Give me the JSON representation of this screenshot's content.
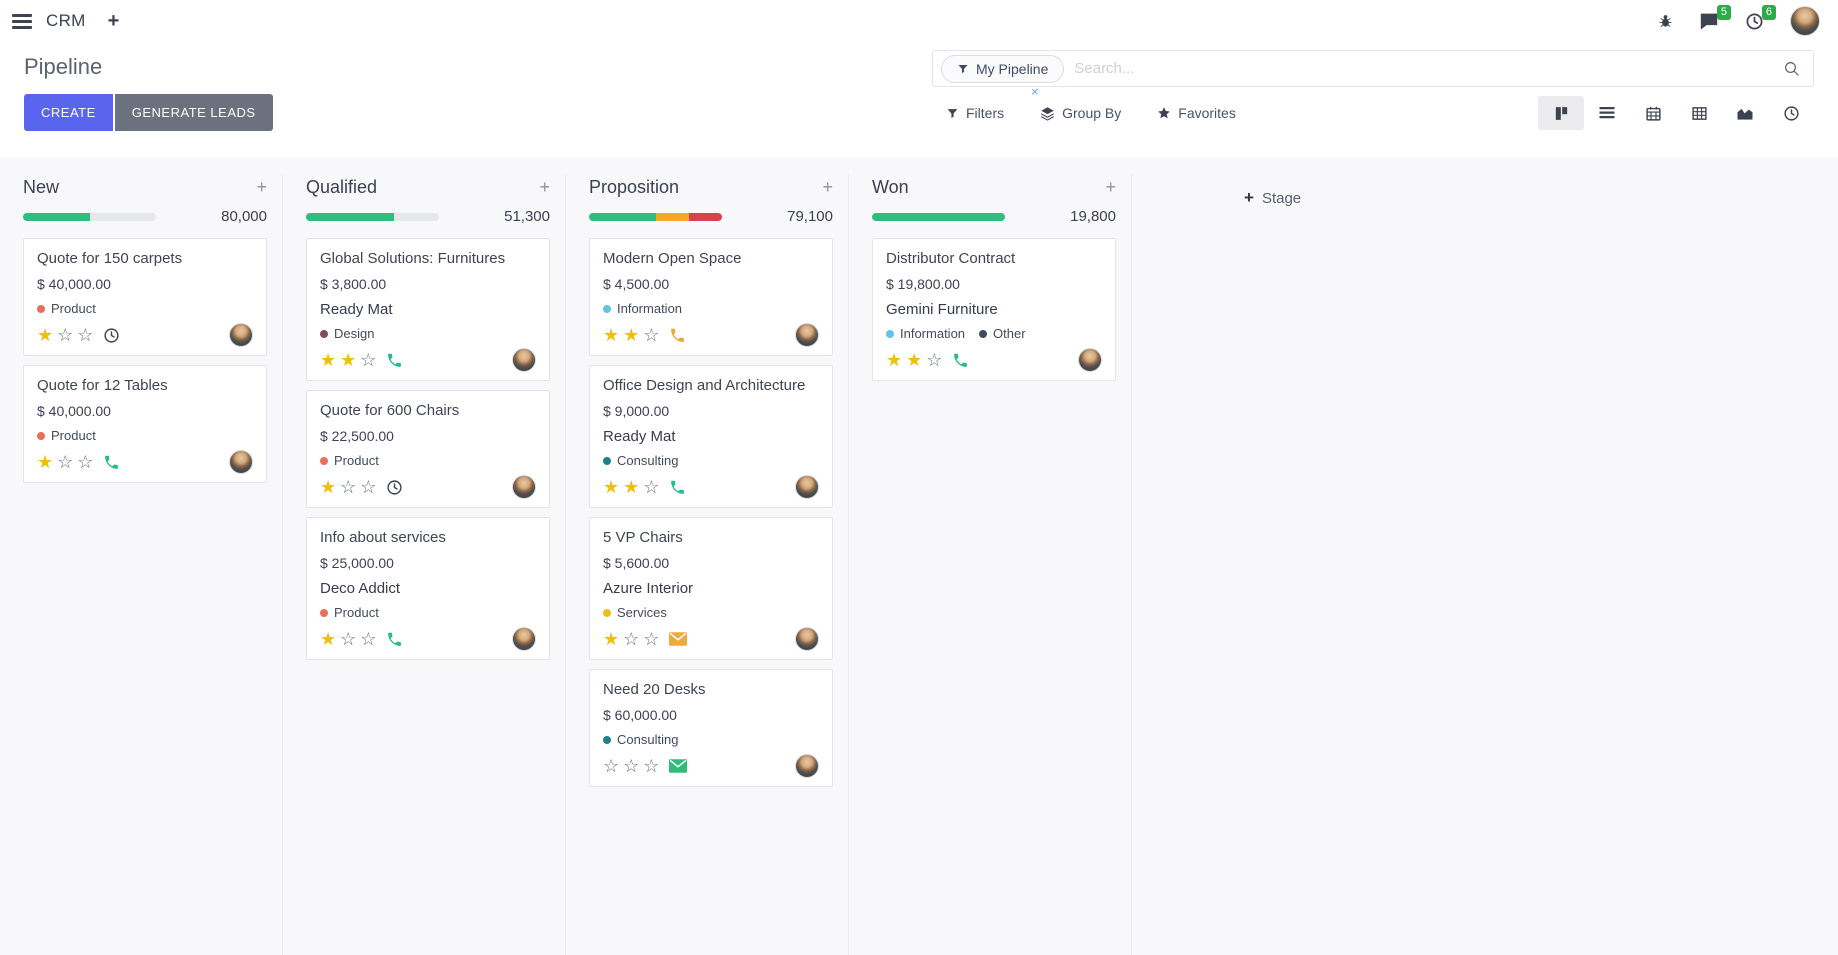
{
  "navbar": {
    "app_name": "CRM",
    "add_label": "+",
    "badges": {
      "messages": "5",
      "activities": "6"
    }
  },
  "control_panel": {
    "title": "Pipeline",
    "create_label": "CREATE",
    "generate_leads_label": "GENERATE LEADS",
    "search": {
      "facet_label": "My Pipeline",
      "facet_remove": "×",
      "placeholder": "Search..."
    },
    "filters_label": "Filters",
    "group_by_label": "Group By",
    "favorites_label": "Favorites"
  },
  "colors": {
    "primary_button": "#5a65ee",
    "secondary_button": "#6c7180",
    "badge_green": "#2dab49",
    "star_filled": "#efc007"
  },
  "kanban": {
    "add_card_label": "+",
    "add_stage_plus": "+",
    "add_stage_label": "Stage",
    "star_filled_glyph": "★",
    "star_empty_glyph": "☆",
    "palette": {
      "green": "#2ebd7e",
      "orange": "#f5a623",
      "red": "#d9414e"
    },
    "columns": [
      {
        "title": "New",
        "total": "80,000",
        "progress": [
          {
            "color": "green",
            "pct": 50
          }
        ],
        "cards": [
          {
            "title": "Quote for 150 carpets",
            "amount": "$ 40,000.00",
            "tags": [
              {
                "label": "Product",
                "color": "#ec6d5a"
              }
            ],
            "stars": 1,
            "activity": {
              "icon": "clock",
              "color": "#3c4351"
            }
          },
          {
            "title": "Quote for 12 Tables",
            "amount": "$ 40,000.00",
            "tags": [
              {
                "label": "Product",
                "color": "#ec6d5a"
              }
            ],
            "stars": 1,
            "activity": {
              "icon": "phone",
              "color": "#27bd87"
            }
          }
        ]
      },
      {
        "title": "Qualified",
        "total": "51,300",
        "progress": [
          {
            "color": "green",
            "pct": 66
          }
        ],
        "cards": [
          {
            "title": "Global Solutions: Furnitures",
            "amount": "$ 3,800.00",
            "partner": "Ready Mat",
            "tags": [
              {
                "label": "Design",
                "color": "#7f4a64"
              }
            ],
            "stars": 2,
            "activity": {
              "icon": "phone",
              "color": "#27bd87"
            }
          },
          {
            "title": "Quote for 600 Chairs",
            "amount": "$ 22,500.00",
            "tags": [
              {
                "label": "Product",
                "color": "#ec6d5a"
              }
            ],
            "stars": 1,
            "activity": {
              "icon": "clock",
              "color": "#3c4351"
            }
          },
          {
            "title": "Info about services",
            "amount": "$ 25,000.00",
            "partner": "Deco Addict",
            "tags": [
              {
                "label": "Product",
                "color": "#ec6d5a"
              }
            ],
            "stars": 1,
            "activity": {
              "icon": "phone",
              "color": "#27bd87"
            }
          }
        ]
      },
      {
        "title": "Proposition",
        "total": "79,100",
        "progress": [
          {
            "color": "green",
            "pct": 50
          },
          {
            "color": "orange",
            "pct": 25
          },
          {
            "color": "red",
            "pct": 25
          }
        ],
        "cards": [
          {
            "title": "Modern Open Space",
            "amount": "$ 4,500.00",
            "tags": [
              {
                "label": "Information",
                "color": "#64c2e8"
              }
            ],
            "stars": 2,
            "activity": {
              "icon": "phone",
              "color": "#f2a33c"
            }
          },
          {
            "title": "Office Design and Architecture",
            "amount": "$ 9,000.00",
            "partner": "Ready Mat",
            "tags": [
              {
                "label": "Consulting",
                "color": "#1f7f8c"
              }
            ],
            "stars": 2,
            "activity": {
              "icon": "phone",
              "color": "#27bd87"
            }
          },
          {
            "title": "5 VP Chairs",
            "amount": "$ 5,600.00",
            "partner": "Azure Interior",
            "tags": [
              {
                "label": "Services",
                "color": "#efbf17"
              }
            ],
            "stars": 1,
            "activity": {
              "icon": "envelope",
              "color": "#f0a93f"
            }
          },
          {
            "title": "Need 20 Desks",
            "amount": "$ 60,000.00",
            "tags": [
              {
                "label": "Consulting",
                "color": "#1f7f8c"
              }
            ],
            "stars": 0,
            "activity": {
              "icon": "envelope",
              "color": "#2dbd79"
            }
          }
        ]
      },
      {
        "title": "Won",
        "total": "19,800",
        "progress": [
          {
            "color": "green",
            "pct": 100
          }
        ],
        "cards": [
          {
            "title": "Distributor Contract",
            "amount": "$ 19,800.00",
            "partner": "Gemini Furniture",
            "tags": [
              {
                "label": "Information",
                "color": "#64c2e8"
              },
              {
                "label": "Other",
                "color": "#3f4b5b"
              }
            ],
            "stars": 2,
            "activity": {
              "icon": "phone",
              "color": "#27bd87"
            }
          }
        ]
      }
    ]
  }
}
